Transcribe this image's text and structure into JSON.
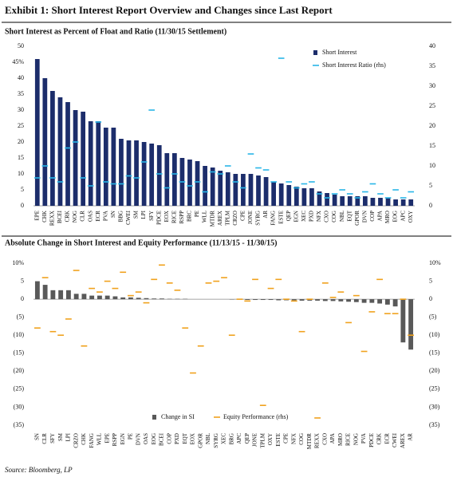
{
  "header": {
    "title": "Exhibit 1: Short Interest Report Overview and Changes since Last Report"
  },
  "footer": {
    "source": "Source: Bloomberg, LP"
  },
  "chart_data": [
    {
      "type": "bar",
      "title": "Short Interest as Percent of Float and Ratio (11/30/15 Settlement)",
      "categories": [
        "EPE",
        "CHK",
        "REXX",
        "BCEI",
        "CRK",
        "NOG",
        "CLR",
        "OAS",
        "ECR",
        "PVA",
        "SN",
        "BBG",
        "CWEI",
        "SM",
        "LPI",
        "SFY",
        "PDCE",
        "EOX",
        "RICE",
        "RSPP",
        "BRC",
        "PE",
        "WLL",
        "MTDR",
        "AREX",
        "TPLM",
        "CRZO",
        "CPE",
        "JONE",
        "SYRG",
        "AR",
        "FANG",
        "ESTE",
        "QEP",
        "EGN",
        "XEC",
        "PXD",
        "NFX",
        "CXO",
        "COG",
        "NBL",
        "EQT",
        "GPOR",
        "DVN",
        "COP",
        "APA",
        "MRO",
        "EOG",
        "APC",
        "OXY"
      ],
      "series": [
        {
          "name": "Short Interest",
          "color": "#1c2d6b",
          "style": "bar",
          "values": [
            46,
            40,
            36,
            34,
            32.5,
            30,
            29.5,
            26.5,
            26.5,
            24.5,
            24.5,
            21,
            20.5,
            20.5,
            20,
            19.5,
            19,
            16.5,
            16.5,
            15,
            14.5,
            14,
            12.5,
            12,
            11,
            10.5,
            10,
            10,
            10,
            9.5,
            9,
            7.5,
            7,
            6.5,
            6,
            5.5,
            5.5,
            4.5,
            4,
            3.5,
            3,
            3,
            3,
            3,
            2.5,
            2.5,
            2.5,
            2,
            2,
            2
          ]
        },
        {
          "name": "Short Interest Ratio (rhs)",
          "color": "#29b6e8",
          "style": "dash",
          "axis": "y2",
          "values": [
            7,
            10,
            7,
            6,
            14.5,
            16,
            7,
            5,
            21,
            6,
            5.5,
            5.5,
            7.5,
            7,
            11,
            24,
            8,
            4.5,
            8,
            6,
            5,
            6,
            3.5,
            8.5,
            8,
            10,
            6,
            4.5,
            13,
            9.5,
            9,
            6,
            37,
            6,
            4.5,
            5.5,
            6,
            3,
            2,
            3,
            4,
            3,
            2,
            3.5,
            5.5,
            3,
            2,
            4,
            2,
            3.5
          ]
        }
      ],
      "ylim": [
        0,
        50
      ],
      "yticks": [
        0,
        5,
        10,
        15,
        20,
        25,
        30,
        35,
        40,
        {
          "value": 45,
          "label": "45%"
        },
        50
      ],
      "y2lim": [
        0,
        40
      ],
      "y2ticks": [
        0,
        5,
        10,
        15,
        20,
        25,
        30,
        35,
        40
      ],
      "legend": "top-right"
    },
    {
      "type": "bar",
      "title": "Absolute Change in Short Interest and Equity Performance (11/13/15 - 11/30/15)",
      "categories": [
        "SN",
        "CLR",
        "SFY",
        "SM",
        "LPI",
        "CRZO",
        "CHK",
        "FANG",
        "WLL",
        "EPE",
        "RSPP",
        "EGN",
        "PE",
        "DVN",
        "OAS",
        "EOG",
        "BCEI",
        "COP",
        "PXD",
        "EQT",
        "EOX",
        "GPOR",
        "NBL",
        "SYRG",
        "XEC",
        "BRG",
        "APC",
        "QEP",
        "JONE",
        "TPLM",
        "OXY",
        "ESTE",
        "CPE",
        "NFX",
        "COG",
        "MTDR",
        "REXX",
        "CXO",
        "APA",
        "MRO",
        "RICE",
        "NOG",
        "PVA",
        "PDCE",
        "CRK",
        "ECR",
        "CWEI",
        "AREX",
        "AR"
      ],
      "series": [
        {
          "name": "Change in SI",
          "color": "#595959",
          "style": "bar",
          "values": [
            5,
            4,
            2.5,
            2.5,
            2.5,
            1.5,
            1.5,
            1,
            1,
            1,
            0.8,
            0.5,
            0.5,
            0.4,
            0.3,
            0.2,
            0.2,
            0.1,
            0.1,
            0.1,
            0,
            0,
            0,
            0,
            0,
            -0.1,
            -0.1,
            -0.2,
            -0.2,
            -0.2,
            -0.2,
            -0.3,
            -0.3,
            -0.3,
            -0.4,
            -0.4,
            -0.4,
            -0.5,
            -0.5,
            -0.6,
            -0.7,
            -0.8,
            -1,
            -1,
            -1.2,
            -1.5,
            -2,
            -12,
            -14
          ]
        },
        {
          "name": "Equity Performance (rhs)",
          "color": "#f0a21e",
          "style": "dash",
          "axis": "y2",
          "values": [
            -8,
            6,
            -9,
            -10,
            -5.5,
            8,
            -13,
            3,
            2,
            5,
            3,
            7.5,
            1,
            2,
            -1,
            5.5,
            9.5,
            4.5,
            2.5,
            -8,
            -20.5,
            -13,
            4.5,
            5,
            6,
            -10,
            0,
            -0.5,
            5.5,
            -29.5,
            3,
            5.5,
            0,
            -0.5,
            -9,
            0,
            -33,
            4.5,
            0.5,
            2,
            -6.5,
            1,
            -14.5,
            -3.5,
            5.5,
            -4,
            -4,
            0,
            -10
          ]
        }
      ],
      "ylim": [
        -35,
        10
      ],
      "yticks": [
        {
          "value": -35,
          "label": "(35)"
        },
        {
          "value": -30,
          "label": "(30)"
        },
        {
          "value": -25,
          "label": "(25)"
        },
        {
          "value": -20,
          "label": "(20)"
        },
        {
          "value": -15,
          "label": "(15)"
        },
        {
          "value": -10,
          "label": "(10)"
        },
        {
          "value": -5,
          "label": "(5)"
        },
        0,
        5,
        {
          "value": 10,
          "label": "10%"
        }
      ],
      "y2lim": [
        -35,
        10
      ],
      "y2ticks": [
        {
          "value": -35,
          "label": "(35)"
        },
        {
          "value": -30,
          "label": "(30)"
        },
        {
          "value": -25,
          "label": "(25)"
        },
        {
          "value": -20,
          "label": "(20)"
        },
        {
          "value": -15,
          "label": "(15)"
        },
        {
          "value": -10,
          "label": "(10)"
        },
        {
          "value": -5,
          "label": "(5)"
        },
        0,
        5,
        {
          "value": 10,
          "label": "10%"
        }
      ],
      "legend": "bottom"
    }
  ]
}
